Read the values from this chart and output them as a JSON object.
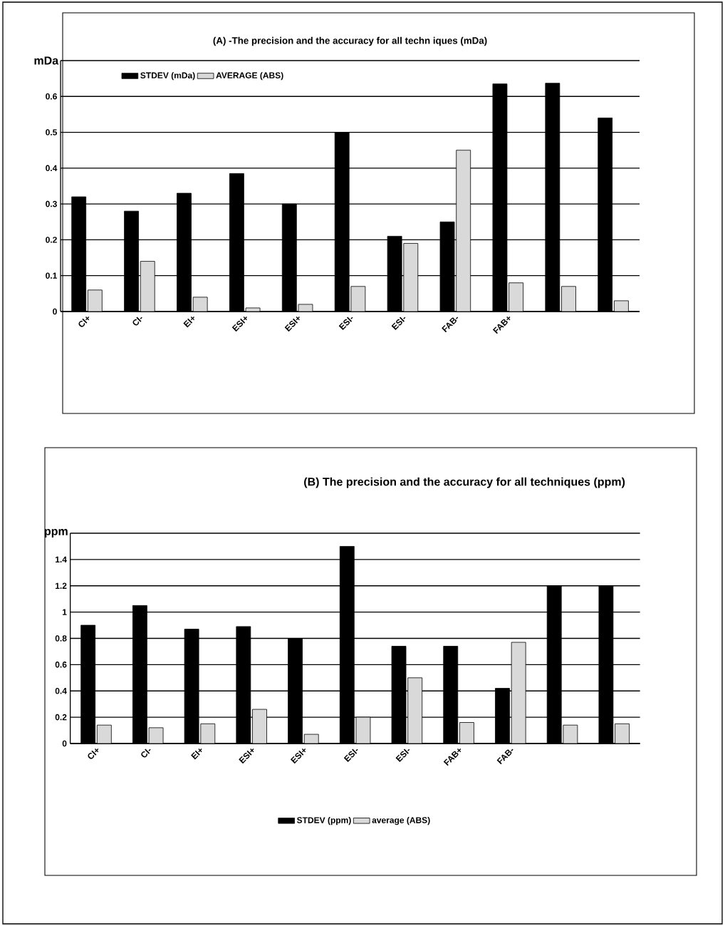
{
  "chart_data": [
    {
      "type": "bar",
      "title": "(A) -The precision and the accuracy for all techn iques (mDa)",
      "ylabel": "mDa",
      "categories": [
        "CI+",
        "CI-",
        "EI+",
        "ESI+",
        "ESI+",
        "ESI-",
        "ESI-",
        "FAB-",
        "FAB+",
        null,
        null
      ],
      "series": [
        {
          "name": "STDEV (mDa)",
          "color": "#000000",
          "values": [
            0.32,
            0.28,
            0.33,
            0.385,
            0.3,
            0.5,
            0.21,
            0.25,
            0.635,
            0.637,
            0.54
          ]
        },
        {
          "name": "AVERAGE (ABS)",
          "color": "#d9d9d9",
          "values": [
            0.06,
            0.14,
            0.04,
            0.01,
            0.02,
            0.07,
            0.19,
            0.45,
            0.08,
            0.07,
            0.03
          ]
        }
      ],
      "ylim": [
        0,
        0.7
      ],
      "yticks": [
        0,
        0.1,
        0.2,
        0.3,
        0.4,
        0.5,
        0.6,
        {
          "value": 0.7,
          "label": null
        }
      ],
      "grid": "y",
      "legend": "top left"
    },
    {
      "type": "bar",
      "title": "(B) The precision and the accuracy for all techniques (ppm)",
      "ylabel": "ppm",
      "categories": [
        "CI+",
        "CI-",
        "EI+",
        "ESI+",
        "ESI+",
        "ESI-",
        "ESI-",
        "FAB+",
        "FAB-",
        null,
        null
      ],
      "series": [
        {
          "name": "STDEV (ppm)",
          "color": "#000000",
          "values": [
            0.9,
            1.05,
            0.87,
            0.89,
            0.8,
            1.5,
            0.74,
            0.74,
            0.42,
            1.2,
            1.2
          ]
        },
        {
          "name": "average (ABS)",
          "color": "#d9d9d9",
          "values": [
            0.14,
            0.12,
            0.15,
            0.26,
            0.07,
            0.2,
            0.5,
            0.16,
            0.77,
            0.14,
            0.15
          ]
        }
      ],
      "ylim": [
        0,
        1.6
      ],
      "yticks": [
        0,
        0.2,
        0.4,
        0.6,
        0.8,
        1,
        1.2,
        1.4,
        {
          "value": 1.6,
          "label": null
        }
      ],
      "grid": "y",
      "legend": "bottom"
    }
  ]
}
